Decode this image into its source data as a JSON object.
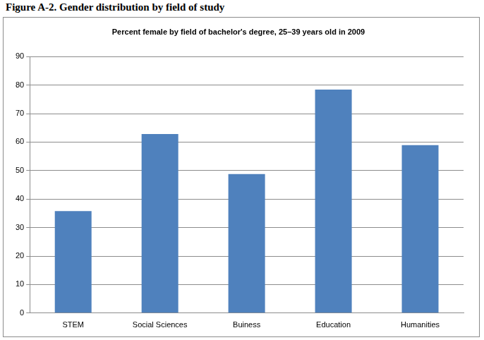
{
  "chart_data": {
    "type": "bar",
    "title": "Figure A-2. Gender distribution by field of study",
    "subtitle": "Percent female by field of bachelor's degree, 25–39 years old in 2009",
    "categories": [
      "STEM",
      "Social Sciences",
      "Buiness",
      "Education",
      "Humanities"
    ],
    "values": [
      35.8,
      62.8,
      48.8,
      78.4,
      58.9
    ],
    "color": "#4f81bd",
    "ylim": [
      0,
      90
    ],
    "yticks": [
      0,
      10,
      20,
      30,
      40,
      50,
      60,
      70,
      80,
      90
    ],
    "grid": true
  }
}
